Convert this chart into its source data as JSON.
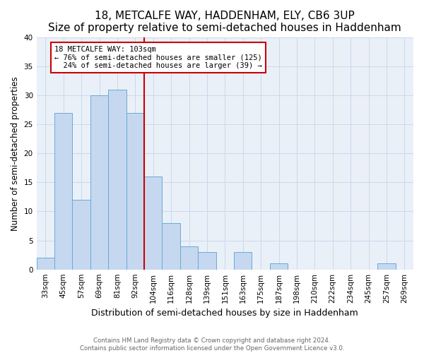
{
  "title": "18, METCALFE WAY, HADDENHAM, ELY, CB6 3UP",
  "subtitle": "Size of property relative to semi-detached houses in Haddenham",
  "xlabel": "Distribution of semi-detached houses by size in Haddenham",
  "ylabel": "Number of semi-detached properties",
  "footer_line1": "Contains HM Land Registry data © Crown copyright and database right 2024.",
  "footer_line2": "Contains public sector information licensed under the Open Government Licence v3.0.",
  "bar_labels": [
    "33sqm",
    "45sqm",
    "57sqm",
    "69sqm",
    "81sqm",
    "92sqm",
    "104sqm",
    "116sqm",
    "128sqm",
    "139sqm",
    "151sqm",
    "163sqm",
    "175sqm",
    "187sqm",
    "198sqm",
    "210sqm",
    "222sqm",
    "234sqm",
    "245sqm",
    "257sqm",
    "269sqm"
  ],
  "bar_values": [
    2,
    27,
    12,
    30,
    31,
    27,
    16,
    8,
    4,
    3,
    0,
    3,
    0,
    1,
    0,
    0,
    0,
    0,
    0,
    1,
    0
  ],
  "bar_color": "#c5d8f0",
  "bar_edge_color": "#6aaad4",
  "property_line_x": 5.5,
  "property_line_color": "#cc0000",
  "annotation_text_line1": "18 METCALFE WAY: 103sqm",
  "annotation_text_line2": "← 76% of semi-detached houses are smaller (125)",
  "annotation_text_line3": "  24% of semi-detached houses are larger (39) →",
  "annotation_box_color": "#cc0000",
  "ylim": [
    0,
    40
  ],
  "yticks": [
    0,
    5,
    10,
    15,
    20,
    25,
    30,
    35,
    40
  ],
  "grid_color": "#ccd8ec",
  "background_color": "#eaf0f8",
  "title_fontsize": 11,
  "tick_fontsize": 7.5,
  "ylabel_fontsize": 8.5,
  "xlabel_fontsize": 9,
  "footer_fontsize": 6.2,
  "annotation_fontsize": 7.5
}
